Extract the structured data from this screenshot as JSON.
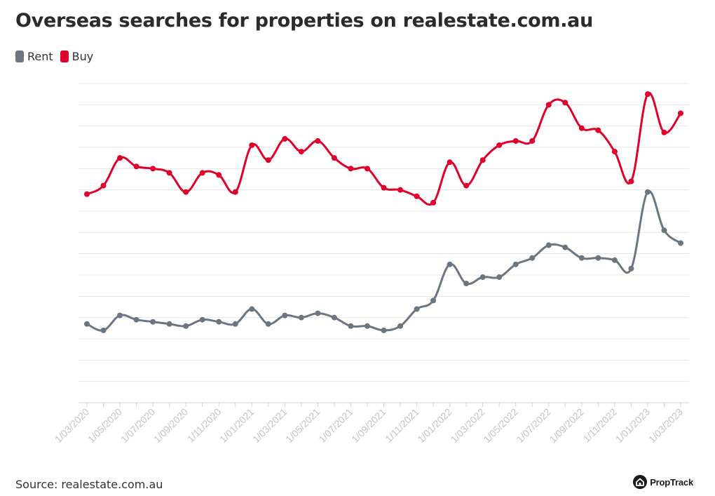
{
  "header": {
    "title": "Overseas searches for properties on realestate.com.au"
  },
  "legend": {
    "rent_label": "Rent",
    "buy_label": "Buy"
  },
  "colors": {
    "rent": "#6b7683",
    "buy": "#e0002a",
    "grid": "#e4e4e4",
    "tick_label": "#c4c4c4"
  },
  "footer": {
    "source": "Source: realestate.com.au",
    "brand": "PropTrack",
    "brand_icon": "house-icon"
  },
  "chart_data": {
    "type": "line",
    "title": "Overseas searches for properties on realestate.com.au",
    "xlabel": "",
    "ylabel": "",
    "grid": true,
    "legend_position": "top-left",
    "x": [
      "1/03/2020",
      "1/04/2020",
      "1/05/2020",
      "1/06/2020",
      "1/07/2020",
      "1/08/2020",
      "1/09/2020",
      "1/10/2020",
      "1/11/2020",
      "1/12/2020",
      "1/01/2021",
      "1/02/2021",
      "1/03/2021",
      "1/04/2021",
      "1/05/2021",
      "1/06/2021",
      "1/07/2021",
      "1/08/2021",
      "1/09/2021",
      "1/10/2021",
      "1/11/2021",
      "1/12/2021",
      "1/01/2022",
      "1/02/2022",
      "1/03/2022",
      "1/04/2022",
      "1/05/2022",
      "1/06/2022",
      "1/07/2022",
      "1/08/2022",
      "1/09/2022",
      "1/10/2022",
      "1/11/2022",
      "1/12/2022",
      "1/01/2023",
      "1/02/2023",
      "1/03/2023"
    ],
    "x_tick_labels": [
      "1/03/2020",
      "",
      "1/05/2020",
      "",
      "1/07/2020",
      "",
      "1/09/2020",
      "",
      "1/11/2020",
      "",
      "1/01/2021",
      "",
      "1/03/2021",
      "",
      "1/05/2021",
      "",
      "1/07/2021",
      "",
      "1/09/2021",
      "",
      "1/11/2021",
      "",
      "1/01/2022",
      "",
      "1/03/2022",
      "",
      "1/05/2022",
      "",
      "1/07/2022",
      "",
      "1/09/2022",
      "",
      "1/11/2022",
      "",
      "1/01/2023",
      "",
      "1/03/2023"
    ],
    "ylim": [
      0,
      15
    ],
    "series": [
      {
        "name": "Buy",
        "values": [
          9.8,
          10.2,
          11.5,
          11.1,
          11.0,
          10.8,
          9.9,
          10.8,
          10.7,
          9.9,
          12.1,
          11.4,
          12.4,
          11.8,
          12.3,
          11.5,
          11.0,
          11.0,
          10.1,
          10.0,
          9.7,
          9.4,
          11.3,
          10.2,
          11.4,
          12.1,
          12.3,
          12.3,
          14.0,
          14.1,
          12.9,
          12.8,
          11.8,
          10.4,
          14.5,
          12.7,
          13.6
        ]
      },
      {
        "name": "Rent",
        "values": [
          3.7,
          3.4,
          4.1,
          3.9,
          3.8,
          3.7,
          3.6,
          3.9,
          3.8,
          3.7,
          4.4,
          3.7,
          4.1,
          4.0,
          4.2,
          4.0,
          3.6,
          3.6,
          3.4,
          3.6,
          4.4,
          4.8,
          6.5,
          5.6,
          5.9,
          5.9,
          6.5,
          6.8,
          7.4,
          7.3,
          6.8,
          6.8,
          6.7,
          6.3,
          9.9,
          8.1,
          7.5
        ]
      }
    ]
  }
}
